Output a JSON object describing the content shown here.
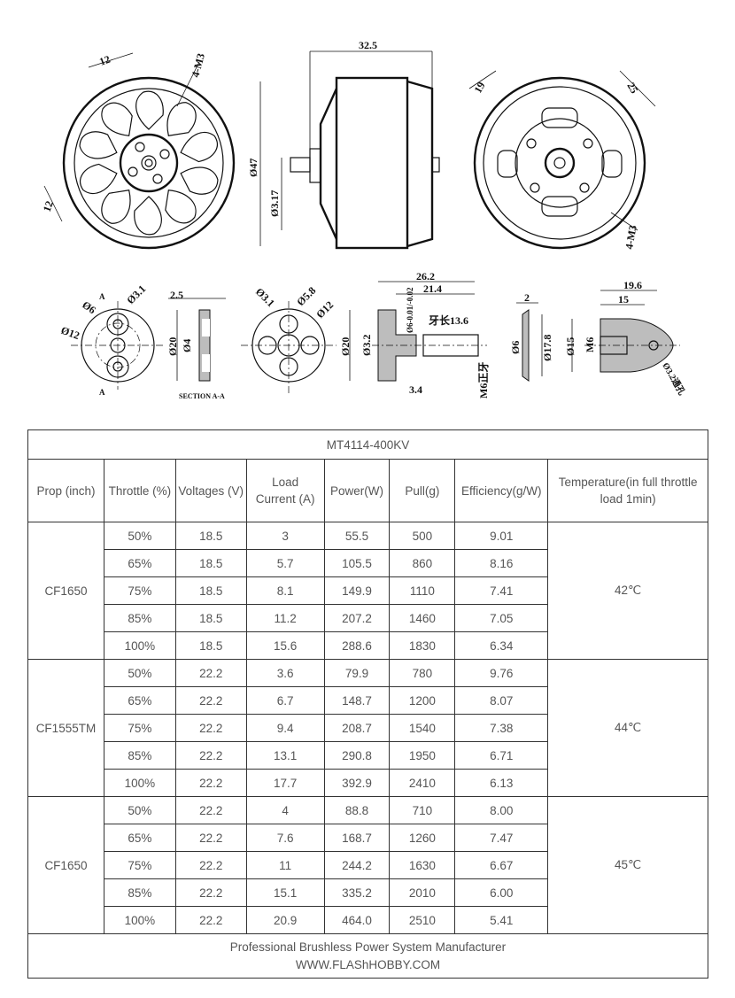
{
  "drawing": {
    "front_view": {
      "dims": [
        "12",
        "4-M3",
        "12"
      ]
    },
    "side_view": {
      "dims": [
        "32.5",
        "Ø47",
        "Ø3.17"
      ]
    },
    "rear_view": {
      "dims": [
        "19",
        "25",
        "4-M3"
      ]
    },
    "prop_adapter_a": {
      "dims": [
        "Ø6",
        "Ø3.1",
        "Ø12"
      ]
    },
    "section_aa": {
      "dims": [
        "2.5",
        "Ø20",
        "Ø4"
      ],
      "caption": "SECTION A-A"
    },
    "prop_adapter_b": {
      "dims": [
        "Ø3.1",
        "Ø5.8",
        "Ø12"
      ]
    },
    "shaft_adapter": {
      "dims": [
        "26.2",
        "21.4",
        "Ø6-0.01/-0.02",
        "牙长13.6",
        "Ø20",
        "Ø3.2",
        "3.4",
        "M6正牙"
      ]
    },
    "washer": {
      "dims": [
        "2",
        "Ø6",
        "Ø17.8"
      ]
    },
    "spinner_nut": {
      "dims": [
        "19.6",
        "15",
        "Ø15",
        "M6",
        "Ø3.2通孔"
      ]
    }
  },
  "table": {
    "title": "MT4114-400KV",
    "headers": [
      "Prop (inch)",
      "Throttle (%)",
      "Voltages (V)",
      "Load Current (A)",
      "Power(W)",
      "Pull(g)",
      "Efficiency(g/W)",
      "Temperature(in full throttle load 1min)"
    ],
    "groups": [
      {
        "prop": "CF1650",
        "temperature": "42℃",
        "rows": [
          [
            "50%",
            "18.5",
            "3",
            "55.5",
            "500",
            "9.01"
          ],
          [
            "65%",
            "18.5",
            "5.7",
            "105.5",
            "860",
            "8.16"
          ],
          [
            "75%",
            "18.5",
            "8.1",
            "149.9",
            "1110",
            "7.41"
          ],
          [
            "85%",
            "18.5",
            "11.2",
            "207.2",
            "1460",
            "7.05"
          ],
          [
            "100%",
            "18.5",
            "15.6",
            "288.6",
            "1830",
            "6.34"
          ]
        ]
      },
      {
        "prop": "CF1555TM",
        "temperature": "44℃",
        "rows": [
          [
            "50%",
            "22.2",
            "3.6",
            "79.9",
            "780",
            "9.76"
          ],
          [
            "65%",
            "22.2",
            "6.7",
            "148.7",
            "1200",
            "8.07"
          ],
          [
            "75%",
            "22.2",
            "9.4",
            "208.7",
            "1540",
            "7.38"
          ],
          [
            "85%",
            "22.2",
            "13.1",
            "290.8",
            "1950",
            "6.71"
          ],
          [
            "100%",
            "22.2",
            "17.7",
            "392.9",
            "2410",
            "6.13"
          ]
        ]
      },
      {
        "prop": "CF1650",
        "temperature": "45℃",
        "rows": [
          [
            "50%",
            "22.2",
            "4",
            "88.8",
            "710",
            "8.00"
          ],
          [
            "65%",
            "22.2",
            "7.6",
            "168.7",
            "1260",
            "7.47"
          ],
          [
            "75%",
            "22.2",
            "11",
            "244.2",
            "1630",
            "6.67"
          ],
          [
            "85%",
            "22.2",
            "15.1",
            "335.2",
            "2010",
            "6.00"
          ],
          [
            "100%",
            "22.2",
            "20.9",
            "464.0",
            "2510",
            "5.41"
          ]
        ]
      }
    ],
    "footer": {
      "line1": "Professional Brushless Power System Manufacturer",
      "line2": "WWW.FLAShHOBBY.COM"
    }
  }
}
